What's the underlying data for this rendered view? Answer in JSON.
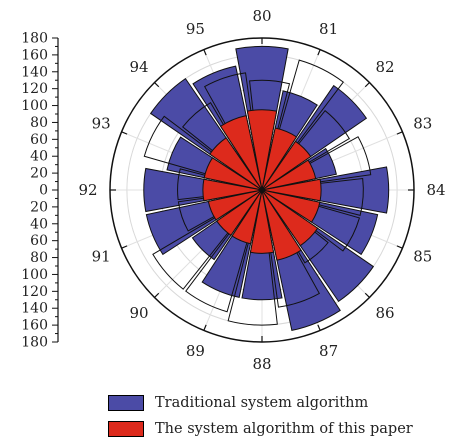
{
  "chart_data": {
    "type": "polar-bar",
    "categories": [
      "80",
      "81",
      "82",
      "83",
      "84",
      "85",
      "86",
      "87",
      "88",
      "89",
      "90",
      "91",
      "92",
      "93",
      "94",
      "95"
    ],
    "radial_ticks_top": [
      "180",
      "160",
      "140",
      "120",
      "100",
      "80",
      "60",
      "40",
      "20",
      "0"
    ],
    "radial_ticks_bottom": [
      "20",
      "40",
      "60",
      "80",
      "100",
      "120",
      "140",
      "160",
      "180"
    ],
    "rmax": 180,
    "series": [
      {
        "name": "Traditional system algorithm",
        "color": "#4b4ba6",
        "values": [
          170,
          120,
          150,
          90,
          150,
          140,
          160,
          170,
          130,
          130,
          100,
          140,
          140,
          115,
          160,
          150
        ],
        "outline_values": [
          130,
          160,
          120,
          130,
          120,
          120,
          100,
          140,
          160,
          150,
          150,
          100,
          100,
          145,
          120,
          140
        ]
      },
      {
        "name": "The system algorithm of this paper",
        "color": "#dd2a1c",
        "values": [
          95,
          75,
          70,
          65,
          70,
          70,
          80,
          85,
          75,
          65,
          65,
          65,
          70,
          70,
          75,
          90
        ]
      }
    ],
    "legend_position": "bottom",
    "grid": true
  }
}
